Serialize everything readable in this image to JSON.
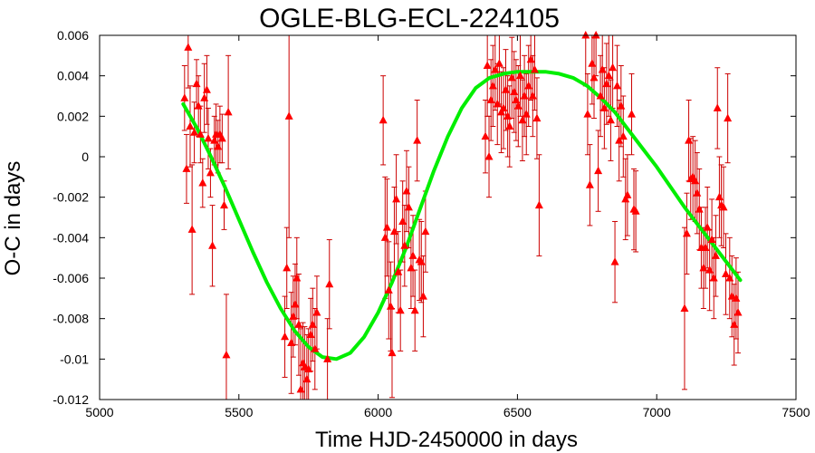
{
  "chart_data": {
    "type": "scatter",
    "title": "OGLE-BLG-ECL-224105",
    "xlabel": "Time HJD-2450000 in days",
    "ylabel": "O-C in days",
    "xlim": [
      5000,
      7500
    ],
    "ylim": [
      -0.012,
      0.006
    ],
    "x_ticks": [
      "5000",
      "5500",
      "6000",
      "6500",
      "7000",
      "7500"
    ],
    "y_ticks": [
      "-0.012",
      "-0.01",
      "-0.008",
      "-0.006",
      "-0.004",
      "-0.002",
      "0",
      "0.002",
      "0.004",
      "0.006"
    ],
    "grid": false,
    "colors": {
      "points": "#ff0000",
      "errorbars": "#cc0000",
      "fit": "#00ee00"
    },
    "points": [
      {
        "x": 5305,
        "y": 0.0029,
        "err": 0.0016
      },
      {
        "x": 5312,
        "y": -0.0006,
        "err": 0.0017
      },
      {
        "x": 5318,
        "y": 0.0054,
        "err": 0.002
      },
      {
        "x": 5325,
        "y": 0.0015,
        "err": 0.002
      },
      {
        "x": 5332,
        "y": -0.0036,
        "err": 0.0032
      },
      {
        "x": 5340,
        "y": 0.0012,
        "err": 0.0015
      },
      {
        "x": 5348,
        "y": 0.0036,
        "err": 0.0012
      },
      {
        "x": 5355,
        "y": 0.0025,
        "err": 0.0015
      },
      {
        "x": 5362,
        "y": 0.0011,
        "err": 0.0014
      },
      {
        "x": 5370,
        "y": -0.0013,
        "err": 0.0012
      },
      {
        "x": 5376,
        "y": 0.0029,
        "err": 0.0017
      },
      {
        "x": 5385,
        "y": 0.0033,
        "err": 0.0017
      },
      {
        "x": 5390,
        "y": 0.0009,
        "err": 0.0015
      },
      {
        "x": 5398,
        "y": -0.0008,
        "err": 0.0012
      },
      {
        "x": 5405,
        "y": -0.0044,
        "err": 0.002
      },
      {
        "x": 5412,
        "y": 0.0008,
        "err": 0.0012
      },
      {
        "x": 5418,
        "y": 0.0011,
        "err": 0.0015
      },
      {
        "x": 5425,
        "y": 0.0005,
        "err": 0.0013
      },
      {
        "x": 5432,
        "y": 0.0011,
        "err": 0.0014
      },
      {
        "x": 5440,
        "y": 0.0009,
        "err": 0.0012
      },
      {
        "x": 5447,
        "y": -0.0024,
        "err": 0.0012
      },
      {
        "x": 5455,
        "y": -0.0098,
        "err": 0.003
      },
      {
        "x": 5462,
        "y": 0.0022,
        "err": 0.0028
      },
      {
        "x": 5665,
        "y": -0.0089,
        "err": 0.002
      },
      {
        "x": 5672,
        "y": -0.0055,
        "err": 0.002
      },
      {
        "x": 5680,
        "y": 0.002,
        "err": 0.006
      },
      {
        "x": 5688,
        "y": -0.0092,
        "err": 0.0025
      },
      {
        "x": 5695,
        "y": -0.0079,
        "err": 0.002
      },
      {
        "x": 5702,
        "y": -0.0073,
        "err": 0.002
      },
      {
        "x": 5708,
        "y": -0.006,
        "err": 0.002
      },
      {
        "x": 5715,
        "y": -0.0083,
        "err": 0.0025
      },
      {
        "x": 5722,
        "y": -0.0115,
        "err": 0.003
      },
      {
        "x": 5730,
        "y": -0.0102,
        "err": 0.002
      },
      {
        "x": 5736,
        "y": -0.0104,
        "err": 0.002
      },
      {
        "x": 5744,
        "y": -0.011,
        "err": 0.0022
      },
      {
        "x": 5750,
        "y": -0.0105,
        "err": 0.002
      },
      {
        "x": 5758,
        "y": -0.0088,
        "err": 0.0018
      },
      {
        "x": 5765,
        "y": -0.0083,
        "err": 0.0018
      },
      {
        "x": 5773,
        "y": -0.0095,
        "err": 0.002
      },
      {
        "x": 5780,
        "y": -0.0077,
        "err": 0.0018
      },
      {
        "x": 5825,
        "y": -0.0063,
        "err": 0.0022
      },
      {
        "x": 5818,
        "y": -0.01,
        "err": 0.002
      },
      {
        "x": 6018,
        "y": 0.0018,
        "err": 0.0022
      },
      {
        "x": 6025,
        "y": -0.004,
        "err": 0.003
      },
      {
        "x": 6032,
        "y": -0.0035,
        "err": 0.0024
      },
      {
        "x": 6038,
        "y": -0.0066,
        "err": 0.0024
      },
      {
        "x": 6045,
        "y": -0.0074,
        "err": 0.0022
      },
      {
        "x": 6050,
        "y": -0.0097,
        "err": 0.0022
      },
      {
        "x": 6058,
        "y": -0.0037,
        "err": 0.0022
      },
      {
        "x": 6065,
        "y": -0.0021,
        "err": 0.0022
      },
      {
        "x": 6072,
        "y": -0.0057,
        "err": 0.002
      },
      {
        "x": 6080,
        "y": -0.0076,
        "err": 0.002
      },
      {
        "x": 6088,
        "y": -0.0032,
        "err": 0.002
      },
      {
        "x": 6095,
        "y": -0.0044,
        "err": 0.002
      },
      {
        "x": 6102,
        "y": -0.0017,
        "err": 0.002
      },
      {
        "x": 6110,
        "y": -0.0025,
        "err": 0.002
      },
      {
        "x": 6118,
        "y": -0.0055,
        "err": 0.002
      },
      {
        "x": 6125,
        "y": -0.0049,
        "err": 0.002
      },
      {
        "x": 6132,
        "y": -0.0076,
        "err": 0.002
      },
      {
        "x": 6140,
        "y": 0.0008,
        "err": 0.002
      },
      {
        "x": 6148,
        "y": -0.0051,
        "err": 0.002
      },
      {
        "x": 6155,
        "y": -0.0052,
        "err": 0.002
      },
      {
        "x": 6162,
        "y": -0.0069,
        "err": 0.002
      },
      {
        "x": 6170,
        "y": -0.0037,
        "err": 0.002
      },
      {
        "x": 6385,
        "y": 0.001,
        "err": 0.0018
      },
      {
        "x": 6392,
        "y": 0.0045,
        "err": 0.0025
      },
      {
        "x": 6398,
        "y": 0.0,
        "err": 0.002
      },
      {
        "x": 6405,
        "y": 0.0028,
        "err": 0.002
      },
      {
        "x": 6412,
        "y": 0.0035,
        "err": 0.002
      },
      {
        "x": 6420,
        "y": 0.0043,
        "err": 0.002
      },
      {
        "x": 6428,
        "y": 0.0026,
        "err": 0.002
      },
      {
        "x": 6435,
        "y": 0.0046,
        "err": 0.002
      },
      {
        "x": 6442,
        "y": 0.0022,
        "err": 0.002
      },
      {
        "x": 6450,
        "y": 0.0024,
        "err": 0.002
      },
      {
        "x": 6458,
        "y": 0.0033,
        "err": 0.002
      },
      {
        "x": 6465,
        "y": 0.002,
        "err": 0.002
      },
      {
        "x": 6472,
        "y": 0.0015,
        "err": 0.002
      },
      {
        "x": 6480,
        "y": 0.0039,
        "err": 0.002
      },
      {
        "x": 6488,
        "y": 0.0032,
        "err": 0.002
      },
      {
        "x": 6495,
        "y": 0.0028,
        "err": 0.002
      },
      {
        "x": 6503,
        "y": 0.0025,
        "err": 0.002
      },
      {
        "x": 6510,
        "y": 0.004,
        "err": 0.002
      },
      {
        "x": 6518,
        "y": 0.0018,
        "err": 0.002
      },
      {
        "x": 6525,
        "y": 0.003,
        "err": 0.002
      },
      {
        "x": 6532,
        "y": 0.0021,
        "err": 0.002
      },
      {
        "x": 6540,
        "y": 0.0035,
        "err": 0.002
      },
      {
        "x": 6548,
        "y": 0.0048,
        "err": 0.002
      },
      {
        "x": 6555,
        "y": 0.003,
        "err": 0.002
      },
      {
        "x": 6562,
        "y": 0.0043,
        "err": 0.002
      },
      {
        "x": 6570,
        "y": 0.0019,
        "err": 0.002
      },
      {
        "x": 6578,
        "y": -0.0024,
        "err": 0.0025
      },
      {
        "x": 6745,
        "y": 0.006,
        "err": 0.0025
      },
      {
        "x": 6752,
        "y": 0.0021,
        "err": 0.002
      },
      {
        "x": 6760,
        "y": -0.0014,
        "err": 0.002
      },
      {
        "x": 6768,
        "y": 0.0046,
        "err": 0.002
      },
      {
        "x": 6775,
        "y": 0.0039,
        "err": 0.002
      },
      {
        "x": 6782,
        "y": 0.006,
        "err": 0.002
      },
      {
        "x": 6790,
        "y": -0.0007,
        "err": 0.002
      },
      {
        "x": 6798,
        "y": 0.003,
        "err": 0.002
      },
      {
        "x": 6805,
        "y": 0.0043,
        "err": 0.002
      },
      {
        "x": 6812,
        "y": 0.0024,
        "err": 0.002
      },
      {
        "x": 6820,
        "y": 0.0036,
        "err": 0.002
      },
      {
        "x": 6828,
        "y": 0.004,
        "err": 0.002
      },
      {
        "x": 6835,
        "y": 0.0018,
        "err": 0.002
      },
      {
        "x": 6842,
        "y": 0.0044,
        "err": 0.002
      },
      {
        "x": 6850,
        "y": -0.0052,
        "err": 0.002
      },
      {
        "x": 6858,
        "y": 0.0035,
        "err": 0.002
      },
      {
        "x": 6865,
        "y": 0.0008,
        "err": 0.002
      },
      {
        "x": 6872,
        "y": 0.0025,
        "err": 0.002
      },
      {
        "x": 6880,
        "y": 0.001,
        "err": 0.002
      },
      {
        "x": 6888,
        "y": -0.0021,
        "err": 0.002
      },
      {
        "x": 6895,
        "y": -0.0019,
        "err": 0.002
      },
      {
        "x": 6910,
        "y": 0.0021,
        "err": 0.002
      },
      {
        "x": 6918,
        "y": -0.0026,
        "err": 0.002
      },
      {
        "x": 6925,
        "y": -0.0027,
        "err": 0.002
      },
      {
        "x": 7100,
        "y": -0.0075,
        "err": 0.004
      },
      {
        "x": 7108,
        "y": -0.0038,
        "err": 0.002
      },
      {
        "x": 7115,
        "y": 0.0008,
        "err": 0.002
      },
      {
        "x": 7122,
        "y": -0.0011,
        "err": 0.002
      },
      {
        "x": 7130,
        "y": -0.001,
        "err": 0.002
      },
      {
        "x": 7138,
        "y": -0.0012,
        "err": 0.002
      },
      {
        "x": 7145,
        "y": -0.0018,
        "err": 0.002
      },
      {
        "x": 7153,
        "y": -0.0026,
        "err": 0.002
      },
      {
        "x": 7160,
        "y": -0.0045,
        "err": 0.002
      },
      {
        "x": 7168,
        "y": -0.0055,
        "err": 0.002
      },
      {
        "x": 7175,
        "y": -0.0045,
        "err": 0.002
      },
      {
        "x": 7182,
        "y": -0.0035,
        "err": 0.002
      },
      {
        "x": 7190,
        "y": -0.0056,
        "err": 0.002
      },
      {
        "x": 7198,
        "y": -0.0041,
        "err": 0.002
      },
      {
        "x": 7205,
        "y": -0.006,
        "err": 0.002
      },
      {
        "x": 7212,
        "y": -0.0049,
        "err": 0.002
      },
      {
        "x": 7218,
        "y": 0.0024,
        "err": 0.002
      },
      {
        "x": 7225,
        "y": -0.002,
        "err": 0.002
      },
      {
        "x": 7232,
        "y": -0.0024,
        "err": 0.002
      },
      {
        "x": 7240,
        "y": -0.0025,
        "err": 0.002
      },
      {
        "x": 7248,
        "y": -0.0058,
        "err": 0.002
      },
      {
        "x": 7255,
        "y": 0.0019,
        "err": 0.0022
      },
      {
        "x": 7262,
        "y": -0.006,
        "err": 0.002
      },
      {
        "x": 7270,
        "y": -0.0069,
        "err": 0.002
      },
      {
        "x": 7278,
        "y": -0.0083,
        "err": 0.002
      },
      {
        "x": 7285,
        "y": -0.007,
        "err": 0.002
      },
      {
        "x": 7292,
        "y": -0.0077,
        "err": 0.002
      }
    ],
    "fit": {
      "x": [
        5300,
        5350,
        5400,
        5450,
        5500,
        5550,
        5600,
        5650,
        5700,
        5750,
        5800,
        5850,
        5900,
        5950,
        6000,
        6050,
        6100,
        6150,
        6200,
        6250,
        6300,
        6350,
        6400,
        6450,
        6500,
        6550,
        6600,
        6650,
        6700,
        6750,
        6800,
        6850,
        6900,
        6950,
        7000,
        7050,
        7100,
        7150,
        7200,
        7250,
        7300
      ],
      "y": [
        0.0026,
        0.0014,
        0.0,
        -0.0015,
        -0.0031,
        -0.0047,
        -0.0062,
        -0.0075,
        -0.0086,
        -0.0094,
        -0.0099,
        -0.01,
        -0.0097,
        -0.0089,
        -0.0077,
        -0.0062,
        -0.0045,
        -0.0026,
        -0.0007,
        0.001,
        0.0024,
        0.0034,
        0.0039,
        0.0041,
        0.0042,
        0.0042,
        0.0042,
        0.0041,
        0.0039,
        0.0035,
        0.0029,
        0.0022,
        0.0013,
        0.0004,
        -0.0005,
        -0.0015,
        -0.0025,
        -0.0034,
        -0.0043,
        -0.0052,
        -0.0061
      ]
    }
  }
}
